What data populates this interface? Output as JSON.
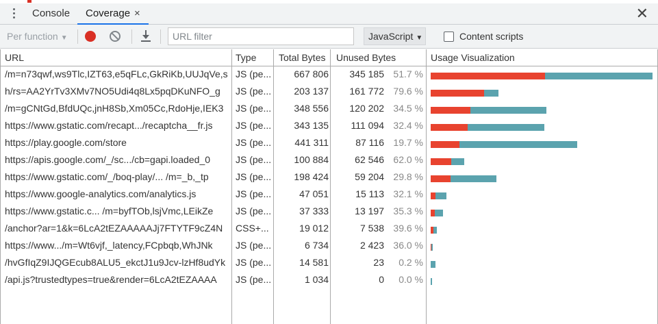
{
  "tabs": {
    "console": "Console",
    "coverage": "Coverage",
    "close_tab": "×",
    "close_panel": "✕"
  },
  "toolbar": {
    "per_function": "Per function",
    "url_filter_placeholder": "URL filter",
    "type_select": "JavaScript",
    "content_scripts": "Content scripts",
    "content_scripts_checked": false
  },
  "columns": {
    "url": "URL",
    "type": "Type",
    "total": "Total Bytes",
    "unused": "Unused Bytes",
    "viz": "Usage Visualization"
  },
  "colors": {
    "unused_bar": "#e8432f",
    "used_bar": "#5ba3ae",
    "record": "#d93025"
  },
  "max_total": 667806,
  "rows": [
    {
      "url": "/m=n73qwf,ws9Tlc,IZT63,e5qFLc,GkRiKb,UUJqVe,s",
      "type": "JS (pe...",
      "total": "667 806",
      "unused": "345 185",
      "pct": "51.7 %",
      "total_n": 667806,
      "unused_n": 345185
    },
    {
      "url": "h/rs=AA2YrTv3XMv7NO5Udi4q8Lx5pqDKuNFO_g",
      "type": "JS (pe...",
      "total": "203 137",
      "unused": "161 772",
      "pct": "79.6 %",
      "total_n": 203137,
      "unused_n": 161772
    },
    {
      "url": "/m=gCNtGd,BfdUQc,jnH8Sb,Xm05Cc,RdoHje,IEK3",
      "type": "JS (pe...",
      "total": "348 556",
      "unused": "120 202",
      "pct": "34.5 %",
      "total_n": 348556,
      "unused_n": 120202
    },
    {
      "url": "https://www.gstatic.com/recapt.../recaptcha__fr.js",
      "type": "JS (pe...",
      "total": "343 135",
      "unused": "111 094",
      "pct": "32.4 %",
      "total_n": 343135,
      "unused_n": 111094
    },
    {
      "url": "https://play.google.com/store",
      "type": "JS (pe...",
      "total": "441 311",
      "unused": "87 116",
      "pct": "19.7 %",
      "total_n": 441311,
      "unused_n": 87116
    },
    {
      "url": "https://apis.google.com/_/sc.../cb=gapi.loaded_0",
      "type": "JS (pe...",
      "total": "100 884",
      "unused": "62 546",
      "pct": "62.0 %",
      "total_n": 100884,
      "unused_n": 62546
    },
    {
      "url": "https://www.gstatic.com/_/boq-play/... /m=_b,_tp",
      "type": "JS (pe...",
      "total": "198 424",
      "unused": "59 204",
      "pct": "29.8 %",
      "total_n": 198424,
      "unused_n": 59204
    },
    {
      "url": "https://www.google-analytics.com/analytics.js",
      "type": "JS (pe...",
      "total": "47 051",
      "unused": "15 113",
      "pct": "32.1 %",
      "total_n": 47051,
      "unused_n": 15113
    },
    {
      "url": "https://www.gstatic.c...   /m=byfTOb,lsjVmc,LEikZe",
      "type": "JS (pe...",
      "total": "37 333",
      "unused": "13 197",
      "pct": "35.3 %",
      "total_n": 37333,
      "unused_n": 13197
    },
    {
      "url": "/anchor?ar=1&k=6LcA2tEZAAAAAJj7FTYTF9cZ4N",
      "type": "CSS+...",
      "total": "19 012",
      "unused": "7 538",
      "pct": "39.6 %",
      "total_n": 19012,
      "unused_n": 7538
    },
    {
      "url": "https://www.../m=Wt6vjf,_latency,FCpbqb,WhJNk",
      "type": "JS (pe...",
      "total": "6 734",
      "unused": "2 423",
      "pct": "36.0 %",
      "total_n": 6734,
      "unused_n": 2423
    },
    {
      "url": "/hvGfIqZ9IJQGEcub8ALU5_ekctJ1u9Jcv-lzHf8udYk",
      "type": "JS (pe...",
      "total": "14 581",
      "unused": "23",
      "pct": "0.2 %",
      "total_n": 14581,
      "unused_n": 23
    },
    {
      "url": "/api.js?trustedtypes=true&render=6LcA2tEZAAAA",
      "type": "JS (pe...",
      "total": "1 034",
      "unused": "0",
      "pct": "0.0 %",
      "total_n": 1034,
      "unused_n": 0
    }
  ]
}
